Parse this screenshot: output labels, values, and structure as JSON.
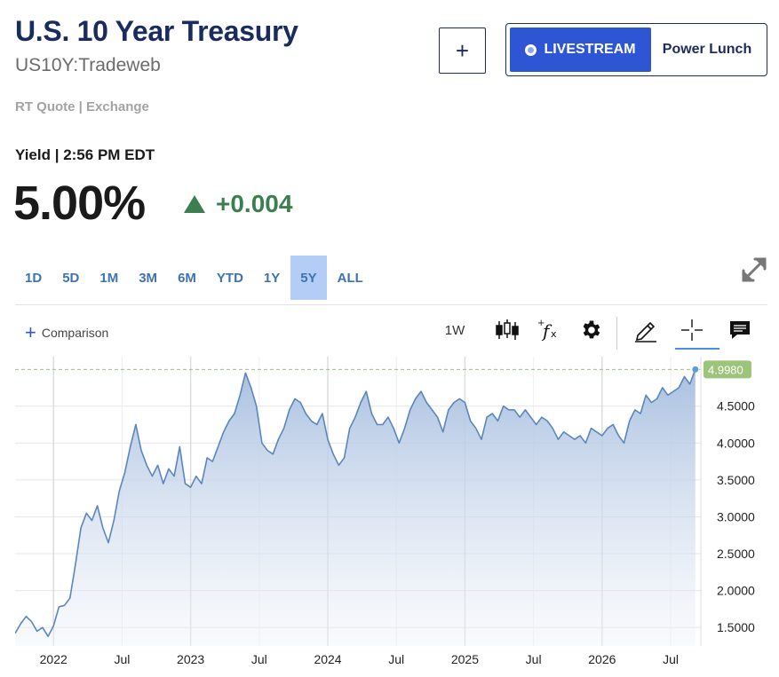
{
  "header": {
    "title": "U.S. 10 Year Treasury",
    "symbol": "US10Y:Tradeweb",
    "quote_source": "RT Quote | Exchange",
    "add_label": "+"
  },
  "livestream": {
    "button_label": "LIVESTREAM",
    "program": "Power Lunch"
  },
  "quote": {
    "yield_label": "Yield | 2:56 PM EDT",
    "price": "5.00%",
    "change": "+0.004",
    "change_color": "#3b7f4f"
  },
  "ranges": {
    "items": [
      "1D",
      "5D",
      "1M",
      "3M",
      "6M",
      "YTD",
      "1Y",
      "5Y",
      "ALL"
    ],
    "selected": "5Y"
  },
  "toolbar": {
    "comparison_label": "Comparison",
    "interval_label": "1W",
    "icons": [
      "candlestick-icon",
      "function-icon",
      "gear-icon",
      "pencil-icon",
      "crosshair-icon",
      "comment-icon"
    ]
  },
  "chart_data": {
    "type": "area",
    "x_ticks": [
      "2022",
      "Jul",
      "2023",
      "Jul",
      "2024",
      "Jul",
      "2025",
      "Jul",
      "2026",
      "Jul"
    ],
    "y_ticks": [
      "1.5000",
      "2.0000",
      "2.5000",
      "3.0000",
      "3.5000",
      "4.0000",
      "4.5000"
    ],
    "ylim": [
      1.25,
      5.05
    ],
    "last_value_label": "4.9980",
    "last_value": 4.998,
    "line_color": "#5b86bd",
    "fill_top_color": "#a9c0e0",
    "badge_color": "#9cc47a",
    "x": [
      2021.72,
      2021.76,
      2021.8,
      2021.84,
      2021.88,
      2021.92,
      2021.96,
      2022.0,
      2022.04,
      2022.08,
      2022.12,
      2022.16,
      2022.2,
      2022.24,
      2022.28,
      2022.32,
      2022.36,
      2022.4,
      2022.44,
      2022.48,
      2022.52,
      2022.56,
      2022.6,
      2022.64,
      2022.68,
      2022.72,
      2022.76,
      2022.8,
      2022.84,
      2022.88,
      2022.92,
      2022.96,
      2023.0,
      2023.04,
      2023.08,
      2023.12,
      2023.16,
      2023.2,
      2023.24,
      2023.28,
      2023.32,
      2023.36,
      2023.4,
      2023.44,
      2023.48,
      2023.52,
      2023.56,
      2023.6,
      2023.64,
      2023.68,
      2023.72,
      2023.76,
      2023.8,
      2023.84,
      2023.88,
      2023.92,
      2023.96,
      2024.0,
      2024.04,
      2024.08,
      2024.12,
      2024.16,
      2024.2,
      2024.24,
      2024.28,
      2024.32,
      2024.36,
      2024.4,
      2024.44,
      2024.48,
      2024.52,
      2024.56,
      2024.6,
      2024.64,
      2024.68,
      2024.72,
      2024.76,
      2024.8,
      2024.84,
      2024.88,
      2024.92,
      2024.96,
      2025.0,
      2025.04,
      2025.08,
      2025.12,
      2025.16,
      2025.2,
      2025.24,
      2025.28,
      2025.32,
      2025.36,
      2025.4,
      2025.44,
      2025.48,
      2025.52,
      2025.56,
      2025.6,
      2025.64,
      2025.68,
      2025.72,
      2025.76,
      2025.8,
      2025.84,
      2025.88,
      2025.92,
      2025.96,
      2026.0,
      2026.04,
      2026.08,
      2026.12,
      2026.16,
      2026.2,
      2026.24,
      2026.28,
      2026.32,
      2026.36,
      2026.4,
      2026.44,
      2026.48,
      2026.52,
      2026.56,
      2026.6,
      2026.64,
      2026.68
    ],
    "y": [
      1.42,
      1.55,
      1.65,
      1.58,
      1.45,
      1.5,
      1.38,
      1.52,
      1.78,
      1.8,
      1.9,
      2.35,
      2.85,
      3.05,
      2.95,
      3.15,
      2.85,
      2.65,
      2.95,
      3.35,
      3.6,
      3.95,
      4.25,
      3.9,
      3.7,
      3.55,
      3.7,
      3.45,
      3.65,
      3.55,
      3.95,
      3.45,
      3.4,
      3.55,
      3.45,
      3.8,
      3.75,
      3.95,
      4.15,
      4.3,
      4.4,
      4.65,
      4.95,
      4.75,
      4.5,
      4.0,
      3.9,
      3.85,
      4.05,
      4.2,
      4.45,
      4.6,
      4.55,
      4.4,
      4.3,
      4.25,
      4.4,
      4.05,
      3.85,
      3.7,
      3.8,
      4.2,
      4.35,
      4.55,
      4.7,
      4.4,
      4.25,
      4.25,
      4.35,
      4.2,
      4.0,
      4.2,
      4.45,
      4.6,
      4.7,
      4.55,
      4.45,
      4.35,
      4.15,
      4.45,
      4.55,
      4.6,
      4.55,
      4.3,
      4.2,
      4.05,
      4.35,
      4.4,
      4.3,
      4.5,
      4.45,
      4.45,
      4.35,
      4.45,
      4.35,
      4.25,
      4.35,
      4.3,
      4.2,
      4.05,
      4.15,
      4.1,
      4.05,
      4.1,
      4.0,
      4.2,
      4.15,
      4.1,
      4.2,
      4.25,
      4.1,
      4.0,
      4.3,
      4.45,
      4.4,
      4.65,
      4.55,
      4.6,
      4.75,
      4.65,
      4.7,
      4.75,
      4.9,
      4.8,
      4.998
    ]
  }
}
